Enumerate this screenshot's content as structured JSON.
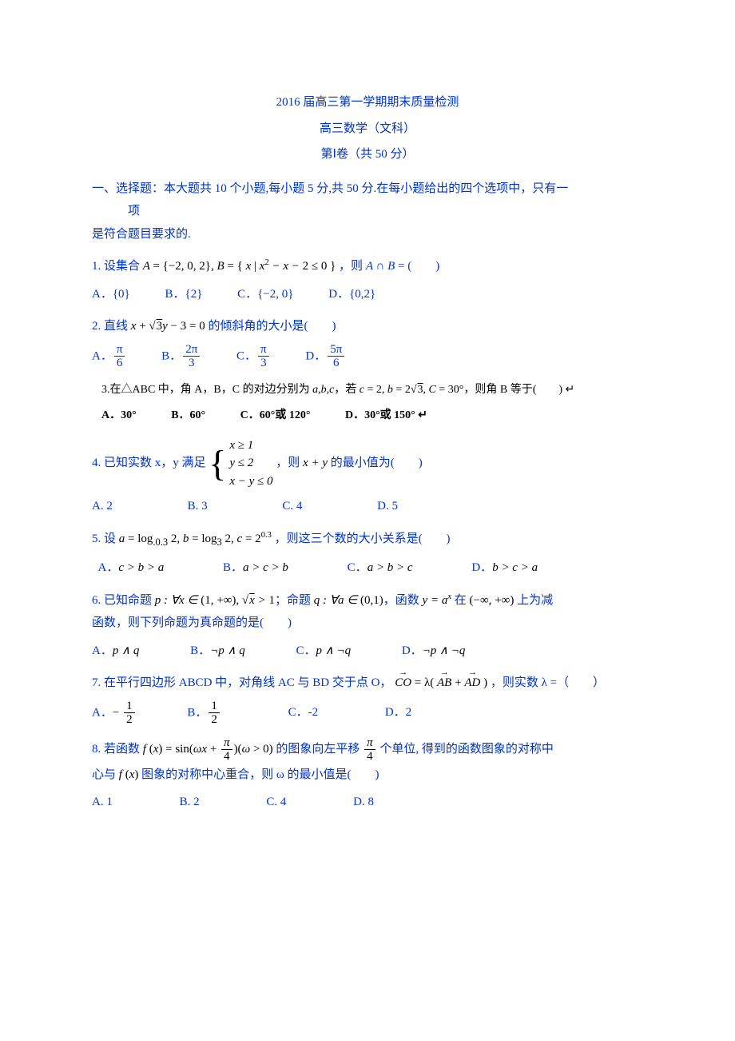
{
  "colors": {
    "main": "#0033cc",
    "text_black": "#000000",
    "bg": "#ffffff"
  },
  "header": {
    "line1": "2016 届高三第一学期期末质量检测",
    "line2": "高三数学（文科）",
    "line3": "第Ⅰ卷（共 50 分）"
  },
  "section1": {
    "line1": "一、选择题：本大题共 10 个小题,每小题 5 分,共 50 分.在每小题给出的四个选项中，只有一",
    "line2": "项",
    "line3": "是符合题目要求的."
  },
  "q1": {
    "prefix": "1. 设集合 ",
    "math_A": "A = {−2, 0, 2}, B = { x | x² − x − 2 ≤ 0 }",
    "suffix": "，则 A ∩ B = (　　)",
    "optA": "A．{0}",
    "optB": "B．{2}",
    "optC": "C．{−2, 0}",
    "optD": "D．{0,2}"
  },
  "q2": {
    "prefix": "2. 直线 ",
    "equation_left": "x + ",
    "equation_sqrt": "3",
    "equation_right": "y − 3 = 0",
    "suffix": " 的倾斜角的大小是(　　)",
    "optA_label": "A．",
    "optA_num": "π",
    "optA_den": "6",
    "optB_label": "B．",
    "optB_num": "2π",
    "optB_den": "3",
    "optC_label": "C．",
    "optC_num": "π",
    "optC_den": "3",
    "optD_label": "D．",
    "optD_num": "5π",
    "optD_den": "6"
  },
  "q3": {
    "text": "3.在△ABC 中，角 A，B，C 的对边分别为 a,b,c，若 c = 2, b = 2√3, C = 30°，则角 B 等于(　　)",
    "tail": "↵",
    "optA": "A．30°",
    "optB": "B．60°",
    "optC": "C．60°或 120°",
    "optD": "D．30°或 150° ↵"
  },
  "q4": {
    "prefix": "4. 已知实数 x，y 满足 ",
    "case1": "x ≥ 1",
    "case2": "y ≤ 2",
    "case3": "x − y ≤ 0",
    "mid": "，则 x + y 的最小值为(　　)",
    "optA": "A. 2",
    "optB": "B. 3",
    "optC": "C. 4",
    "optD": "D. 5"
  },
  "q5": {
    "text": "5. 设 a = log₀.₃ 2, b = log₃ 2, c = 2⁰·³，则这三个数的大小关系是(　　)",
    "optA": "A．c > b > a",
    "optB": "B．a > c > b",
    "optC": "C．a > b > c",
    "optD": "D．b > c > a"
  },
  "q6": {
    "line1_pre": "6. 已知命题 p : ∀x ∈ (1, +∞), ",
    "line1_sqrt": "x",
    "line1_mid": " > 1；命题 q : ∀a ∈ (0,1)，函数 y = aˣ 在 (−∞, +∞) 上为减",
    "line2": "函数，则下列命题为真命题的是(　　)",
    "optA": "A．p ∧ q",
    "optB": "B．¬p ∧ q",
    "optC": "C．p ∧ ¬q",
    "optD": "D．¬p ∧ ¬q"
  },
  "q7": {
    "prefix": "7. 在平行四边形 ABCD 中，对角线 AC 与 BD 交于点 O，",
    "eq_left": "CO",
    "eq_mid": " = λ( ",
    "eq_AB": "AB",
    "eq_plus": " + ",
    "eq_AD": "AD",
    "eq_close": " )",
    "suffix": "，则实数 λ =（　　）",
    "optA_label": "A．",
    "optA_num": "1",
    "optA_den": "2",
    "optA_sign": "− ",
    "optB_label": "B．",
    "optB_num": "1",
    "optB_den": "2",
    "optC": "C．-2",
    "optD": "D．2"
  },
  "q8": {
    "line1_pre": "8. 若函数 f (x) = sin",
    "arg_left": "ωx + ",
    "arg_num": "π",
    "arg_den": "4",
    "cond": "(ω > 0)",
    "line1_mid": " 的图象向左平移 ",
    "shift_num": "π",
    "shift_den": "4",
    "line1_suf": " 个单位, 得到的函数图象的对称中",
    "line2": "心与 f (x) 图象的对称中心重合，则 ω 的最小值是(　　)",
    "optA": "A. 1",
    "optB": "B. 2",
    "optC": "C. 4",
    "optD": "D. 8"
  }
}
